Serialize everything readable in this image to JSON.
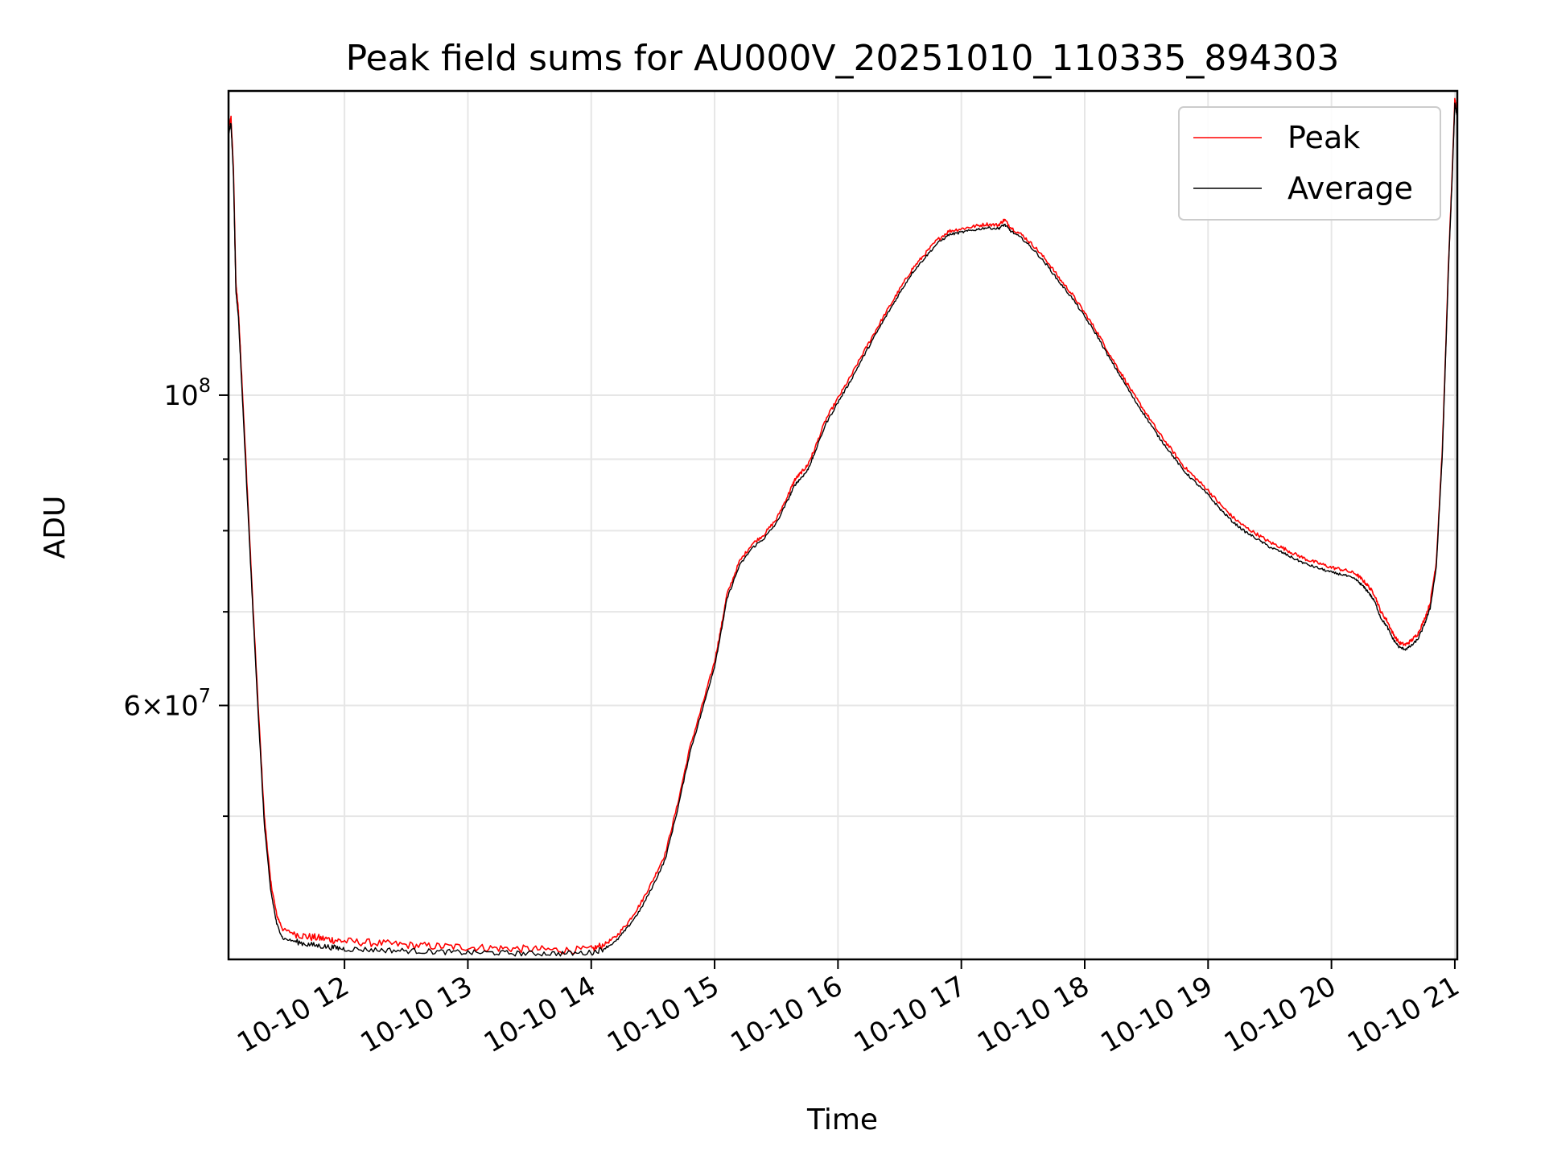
{
  "chart_data": {
    "type": "line",
    "title": "Peak field sums for AU000V_20251010_110335_894303",
    "xlabel": "Time",
    "ylabel": "ADU",
    "xlim": [
      11.06,
      21.02
    ],
    "ylim": [
      39500000,
      165000000
    ],
    "y_scale": "log",
    "grid": true,
    "legend_position": "top-right",
    "x_ticks": [
      {
        "value": 12,
        "label": "10-10 12"
      },
      {
        "value": 13,
        "label": "10-10 13"
      },
      {
        "value": 14,
        "label": "10-10 14"
      },
      {
        "value": 15,
        "label": "10-10 15"
      },
      {
        "value": 16,
        "label": "10-10 16"
      },
      {
        "value": 17,
        "label": "10-10 17"
      },
      {
        "value": 18,
        "label": "10-10 18"
      },
      {
        "value": 19,
        "label": "10-10 19"
      },
      {
        "value": 20,
        "label": "10-10 20"
      },
      {
        "value": 21,
        "label": "10-10 21"
      }
    ],
    "y_major_ticks": [
      {
        "value": 100000000,
        "base": "10",
        "exp": "8"
      },
      {
        "value": 60000000,
        "base": "6×10",
        "exp": "7"
      }
    ],
    "y_minor_ticks": [
      50000000,
      70000000,
      80000000,
      90000000
    ],
    "series": [
      {
        "name": "Peak",
        "color": "#ff0000",
        "x": [
          11.06,
          11.08,
          11.1,
          11.12,
          11.14,
          11.16,
          11.2,
          11.25,
          11.3,
          11.35,
          11.4,
          11.45,
          11.5,
          11.6,
          11.7,
          11.8,
          11.9,
          12.0,
          12.2,
          12.4,
          12.6,
          12.8,
          13.0,
          13.2,
          13.4,
          13.6,
          13.8,
          14.0,
          14.1,
          14.2,
          14.3,
          14.4,
          14.5,
          14.6,
          14.7,
          14.8,
          14.9,
          15.0,
          15.05,
          15.1,
          15.2,
          15.3,
          15.4,
          15.5,
          15.6,
          15.65,
          15.7,
          15.75,
          15.8,
          15.9,
          16.0,
          16.1,
          16.2,
          16.3,
          16.4,
          16.5,
          16.6,
          16.7,
          16.8,
          16.9,
          17.0,
          17.1,
          17.2,
          17.3,
          17.35,
          17.4,
          17.5,
          17.6,
          17.7,
          17.8,
          17.9,
          18.0,
          18.1,
          18.2,
          18.3,
          18.4,
          18.5,
          18.6,
          18.7,
          18.8,
          18.9,
          19.0,
          19.1,
          19.2,
          19.3,
          19.4,
          19.5,
          19.6,
          19.7,
          19.8,
          19.9,
          20.0,
          20.1,
          20.2,
          20.25,
          20.3,
          20.35,
          20.4,
          20.45,
          20.5,
          20.55,
          20.6,
          20.65,
          20.7,
          20.75,
          20.8,
          20.85,
          20.9,
          20.95,
          20.98,
          21.0,
          21.02
        ],
        "values": [
          155000000,
          158000000,
          145000000,
          120000000,
          115000000,
          106000000,
          90000000,
          73000000,
          60000000,
          50000000,
          45000000,
          42500000,
          41500000,
          41200000,
          41000000,
          40900000,
          40800000,
          40700000,
          40600000,
          40500000,
          40400000,
          40350000,
          40300000,
          40250000,
          40200000,
          40150000,
          40100000,
          40150000,
          40450000,
          41000000,
          42000000,
          43300000,
          45000000,
          47000000,
          51000000,
          56000000,
          60000000,
          64500000,
          68000000,
          72000000,
          76000000,
          78200000,
          79500000,
          81500000,
          85000000,
          87000000,
          88000000,
          89000000,
          91000000,
          96000000,
          99500000,
          103000000,
          107000000,
          111000000,
          115000000,
          119000000,
          123000000,
          126000000,
          129000000,
          131000000,
          131500000,
          132000000,
          132500000,
          132300000,
          133500000,
          131800000,
          130000000,
          127500000,
          124500000,
          121000000,
          118000000,
          114500000,
          111000000,
          107000000,
          103500000,
          100000000,
          97000000,
          94000000,
          91500000,
          89000000,
          87200000,
          85500000,
          83500000,
          81800000,
          80500000,
          79500000,
          78500000,
          77800000,
          77000000,
          76300000,
          75800000,
          75300000,
          75000000,
          74500000,
          73800000,
          73000000,
          72000000,
          70000000,
          69000000,
          67500000,
          66500000,
          66300000,
          66800000,
          67500000,
          69000000,
          71000000,
          76000000,
          92000000,
          125000000,
          145000000,
          163000000,
          159000000
        ]
      },
      {
        "name": "Average",
        "color": "#000000",
        "x": [
          11.06,
          11.08,
          11.1,
          11.12,
          11.14,
          11.16,
          11.2,
          11.25,
          11.3,
          11.35,
          11.4,
          11.45,
          11.5,
          11.6,
          11.7,
          11.8,
          11.9,
          12.0,
          12.2,
          12.4,
          12.6,
          12.8,
          13.0,
          13.2,
          13.4,
          13.6,
          13.8,
          14.0,
          14.1,
          14.2,
          14.3,
          14.4,
          14.5,
          14.6,
          14.7,
          14.8,
          14.9,
          15.0,
          15.05,
          15.1,
          15.2,
          15.3,
          15.4,
          15.5,
          15.6,
          15.65,
          15.7,
          15.75,
          15.8,
          15.9,
          16.0,
          16.1,
          16.2,
          16.3,
          16.4,
          16.5,
          16.6,
          16.7,
          16.8,
          16.9,
          17.0,
          17.1,
          17.2,
          17.3,
          17.35,
          17.4,
          17.5,
          17.6,
          17.7,
          17.8,
          17.9,
          18.0,
          18.1,
          18.2,
          18.3,
          18.4,
          18.5,
          18.6,
          18.7,
          18.8,
          18.9,
          19.0,
          19.1,
          19.2,
          19.3,
          19.4,
          19.5,
          19.6,
          19.7,
          19.8,
          19.9,
          20.0,
          20.1,
          20.2,
          20.25,
          20.3,
          20.35,
          20.4,
          20.45,
          20.5,
          20.55,
          20.6,
          20.65,
          20.7,
          20.75,
          20.8,
          20.85,
          20.9,
          20.95,
          20.98,
          21.0,
          21.02
        ],
        "values": [
          154000000,
          157000000,
          144000000,
          119000000,
          114000000,
          105000000,
          89000000,
          72500000,
          59500000,
          49500000,
          44500000,
          42000000,
          41000000,
          40800000,
          40600000,
          40500000,
          40400000,
          40300000,
          40250000,
          40200000,
          40150000,
          40100000,
          40050000,
          40050000,
          40000000,
          40000000,
          40000000,
          40050000,
          40300000,
          40800000,
          41800000,
          43000000,
          44700000,
          46700000,
          50700000,
          55700000,
          59700000,
          64200000,
          67700000,
          71700000,
          75700000,
          77900000,
          79200000,
          81200000,
          84600000,
          86500000,
          87500000,
          88500000,
          90600000,
          95600000,
          99100000,
          102600000,
          106600000,
          110600000,
          114600000,
          118600000,
          122600000,
          125600000,
          128600000,
          130600000,
          131100000,
          131600000,
          132100000,
          131900000,
          132800000,
          131400000,
          129600000,
          127000000,
          124000000,
          120600000,
          117600000,
          114100000,
          110600000,
          106600000,
          103100000,
          99600000,
          96600000,
          93600000,
          91100000,
          88600000,
          86800000,
          85100000,
          83100000,
          81400000,
          80100000,
          79100000,
          78100000,
          77400000,
          76600000,
          75900000,
          75400000,
          74900000,
          74600000,
          74000000,
          73300000,
          72500000,
          71400000,
          69500000,
          68500000,
          67100000,
          66200000,
          66000000,
          66400000,
          67100000,
          68600000,
          70600000,
          75600000,
          91500000,
          124500000,
          144500000,
          162000000,
          158500000
        ]
      }
    ]
  }
}
